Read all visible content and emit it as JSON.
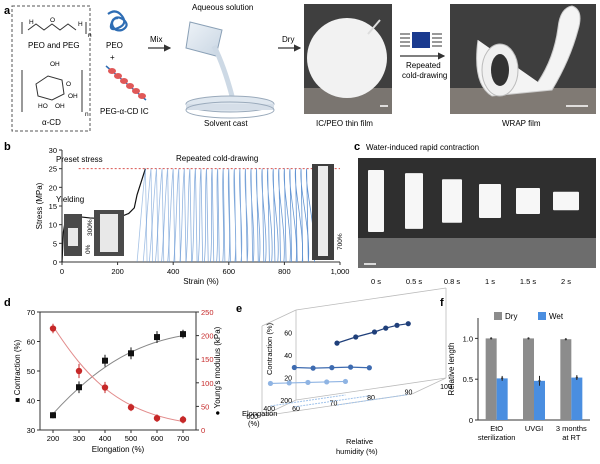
{
  "panel_a": {
    "letter": "a",
    "chem_label": "PEO and PEG",
    "cd_label": "α-CD",
    "peo": "PEO",
    "plus": "+",
    "ic": "PEG-α-CD IC",
    "mix": "Mix",
    "aqueous": "Aqueous solution",
    "solvent_cast": "Solvent cast",
    "dry": "Dry",
    "film": "IC/PEO thin film",
    "repeated": "Repeated",
    "cold_drawing": "cold-drawing",
    "wrap": "WRAP film",
    "oh": "OH",
    "ho": "HO",
    "o": "O",
    "h": "H",
    "n": "n"
  },
  "panel_b": {
    "letter": "b",
    "preset_stress": "Preset stress",
    "repeated_cold": "Repeated cold-drawing",
    "yielding": "Yielding",
    "pct0": "0%",
    "pct300": "300%",
    "pct700": "700%",
    "colors": {
      "envelope": "#111111",
      "cycles": "#5b8fd0",
      "preset": "#d9534f"
    }
  },
  "panel_c": {
    "letter": "c",
    "title": "Water-induced rapid contraction",
    "times": [
      "0 s",
      "0.5 s",
      "0.8 s",
      "1 s",
      "1.5 s",
      "2 s"
    ]
  },
  "panel_d": {
    "letter": "d"
  },
  "panel_e": {
    "letter": "e",
    "zlabel": "Contraction (%)",
    "ylabel_top": "Elongation",
    "ylabel_bot": "(%)",
    "xlabel_top": "Relative",
    "xlabel_bot": "humidity (%)",
    "z_ticks": [
      "20",
      "40",
      "60"
    ],
    "y_ticks": [
      "200",
      "400",
      "600"
    ],
    "x_ticks": [
      "60",
      "70",
      "80",
      "90",
      "100"
    ]
  },
  "panel_f": {
    "letter": "f"
  },
  "chart_data": [
    {
      "type": "line",
      "panel": "b",
      "xlabel": "Strain (%)",
      "ylabel": "Stress (MPa)",
      "xlim": [
        0,
        1000
      ],
      "ylim": [
        0,
        30
      ],
      "x_ticks": [
        "0",
        "200",
        "400",
        "600",
        "800",
        "1,000"
      ],
      "y_ticks": [
        "0",
        "5",
        "10",
        "15",
        "20",
        "25",
        "30"
      ],
      "preset_stress": 25,
      "series": [
        {
          "x": [
            0,
            5,
            15,
            40,
            100,
            150,
            200,
            240,
            260,
            270,
            300
          ],
          "y": [
            0,
            8,
            12.5,
            12.3,
            11.8,
            11.6,
            11.8,
            13,
            14.5,
            18,
            25
          ]
        }
      ],
      "cycle_peaks_x": [
        300,
        320,
        340,
        360,
        380,
        400,
        420,
        440,
        460,
        480,
        500,
        520,
        540,
        560,
        580,
        600,
        620,
        640,
        660,
        680,
        700,
        720,
        740,
        760,
        780,
        800,
        820,
        840,
        860,
        880
      ]
    },
    {
      "type": "line",
      "panel": "d",
      "xlabel": "Elongation (%)",
      "ylabel": "Contraction (%)",
      "ylabel2": "Young's modulus (kPa)",
      "xlim": [
        150,
        750
      ],
      "ylim": [
        30,
        70
      ],
      "ylim2": [
        0,
        250
      ],
      "x_ticks": [
        "200",
        "300",
        "400",
        "500",
        "600",
        "700"
      ],
      "y_ticks": [
        "30",
        "40",
        "50",
        "60",
        "70"
      ],
      "y2_ticks": [
        "0",
        "50",
        "100",
        "150",
        "200",
        "250"
      ],
      "series": [
        {
          "marker": "square",
          "color": "#111111",
          "x": [
            200,
            300,
            400,
            500,
            600,
            700
          ],
          "y": [
            35,
            44.5,
            53.5,
            56,
            61.5,
            62.5
          ],
          "err": [
            1,
            2,
            2,
            2,
            2,
            1.5
          ]
        },
        {
          "marker": "circle",
          "color": "#c62828",
          "axis": "right",
          "x": [
            200,
            300,
            400,
            500,
            600,
            700
          ],
          "y": [
            215,
            125,
            90,
            48,
            25,
            22
          ],
          "err": [
            10,
            15,
            12,
            8,
            8,
            8
          ]
        }
      ]
    },
    {
      "type": "scatter",
      "panel": "e",
      "note": "3D plot of contraction vs. elongation and relative humidity",
      "series": [
        {
          "color": "#1f3f7a",
          "elongation": 700,
          "rh": [
            80,
            85,
            90,
            93,
            96,
            99
          ],
          "contraction": [
            55,
            58,
            60,
            62,
            63,
            63
          ]
        },
        {
          "color": "#3e6bb0",
          "elongation": 500,
          "rh": [
            65,
            70,
            75,
            80,
            85
          ],
          "contraction": [
            35,
            32,
            30,
            28,
            25
          ]
        },
        {
          "color": "#8fb4e3",
          "elongation": 300,
          "rh": [
            55,
            60,
            65,
            70,
            75
          ],
          "contraction": [
            20,
            18,
            16,
            14,
            12
          ]
        }
      ]
    },
    {
      "type": "bar",
      "panel": "f",
      "ylabel": "Relative length",
      "ylim": [
        0,
        1.25
      ],
      "y_ticks": [
        "0",
        "0.5",
        "1.0"
      ],
      "categories": [
        [
          "EtO",
          "sterilization"
        ],
        [
          "UVGI"
        ],
        [
          "3 months",
          "at RT"
        ]
      ],
      "series": [
        {
          "name": "Dry",
          "color": "#8c8c8c",
          "values": [
            1.0,
            1.0,
            0.99
          ],
          "err": [
            0.005,
            0.005,
            0.005
          ]
        },
        {
          "name": "Wet",
          "color": "#4a8ee0",
          "values": [
            0.51,
            0.48,
            0.52
          ],
          "err": [
            0.03,
            0.06,
            0.03
          ]
        }
      ]
    }
  ]
}
